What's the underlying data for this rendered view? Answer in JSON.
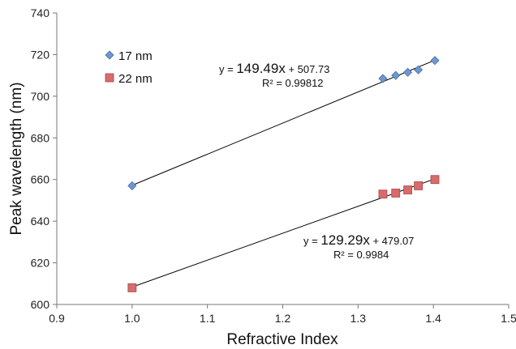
{
  "chart_data": {
    "type": "scatter",
    "xlabel": "Refractive Index",
    "ylabel": "Peak wavelength (nm)",
    "xlim": [
      0.9,
      1.5
    ],
    "ylim": [
      600,
      740
    ],
    "x_ticks": [
      "0.9",
      "1.0",
      "1.1",
      "1.2",
      "1.3",
      "1.4",
      "1.5"
    ],
    "y_ticks": [
      "600",
      "620",
      "640",
      "660",
      "680",
      "700",
      "720",
      "740"
    ],
    "x_tick_values": [
      0.9,
      1.0,
      1.1,
      1.2,
      1.3,
      1.4,
      1.5
    ],
    "y_tick_values": [
      600,
      620,
      640,
      660,
      680,
      700,
      720,
      740
    ],
    "grid": false,
    "legend_position": "top-left",
    "series": [
      {
        "name": "17 nm",
        "marker": "diamond",
        "color": "#6f97cf",
        "x": [
          1.0,
          1.333,
          1.35,
          1.366,
          1.38,
          1.402
        ],
        "y": [
          657,
          708.5,
          710,
          711.5,
          712.7,
          717.2
        ],
        "trendline": {
          "slope": 149.49,
          "intercept": 507.73,
          "eq_prefix": "y = ",
          "eq_slope": "149.49x",
          "eq_suffix": " + 507.73",
          "r2": "R² = 0.99812"
        }
      },
      {
        "name": "22 nm",
        "marker": "square",
        "color": "#d86b6b",
        "x": [
          1.0,
          1.333,
          1.35,
          1.366,
          1.38,
          1.402
        ],
        "y": [
          608,
          653,
          653.5,
          655,
          657,
          660
        ],
        "trendline": {
          "slope": 129.29,
          "intercept": 479.07,
          "eq_prefix": "y = ",
          "eq_slope": "129.29x",
          "eq_suffix": " + 479.07",
          "r2": "R² = 0.9984"
        }
      }
    ]
  }
}
